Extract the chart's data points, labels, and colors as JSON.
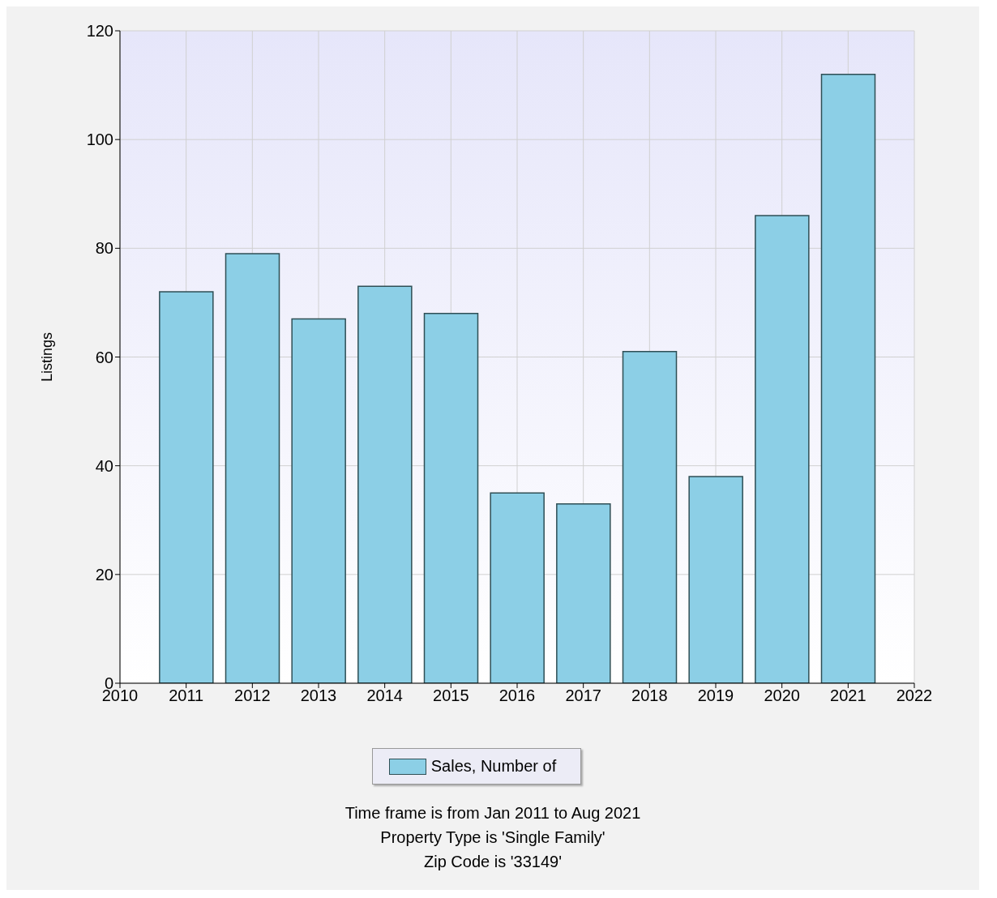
{
  "chart_data": {
    "type": "bar",
    "ylabel": "Listings",
    "x": [
      2011,
      2012,
      2013,
      2014,
      2015,
      2016,
      2017,
      2018,
      2019,
      2020,
      2021
    ],
    "series": [
      {
        "name": "Sales, Number of",
        "color": "#8ccfe6",
        "values": [
          72,
          79,
          67,
          73,
          68,
          35,
          33,
          61,
          38,
          86,
          112
        ]
      }
    ],
    "xlim": [
      2010,
      2022
    ],
    "xticks": [
      2010,
      2011,
      2012,
      2013,
      2014,
      2015,
      2016,
      2017,
      2018,
      2019,
      2020,
      2021,
      2022
    ],
    "ylim": [
      0,
      120
    ],
    "yticks": [
      0,
      20,
      40,
      60,
      80,
      100,
      120
    ],
    "grid": true,
    "legend": "bottom",
    "annotations": [
      "Time frame is from Jan 2011 to Aug 2021",
      "Property Type is 'Single Family'",
      "Zip Code is '33149'"
    ]
  }
}
